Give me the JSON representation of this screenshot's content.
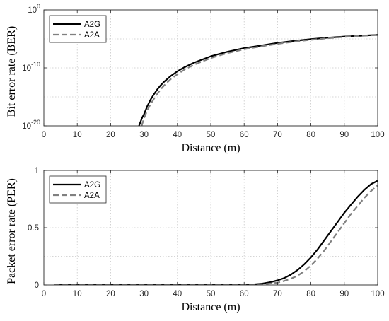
{
  "chart_data": [
    {
      "type": "line",
      "ylabel": "Bit error rate (BER)",
      "xlabel": "Distance (m)",
      "xlim": [
        0,
        100
      ],
      "yscale": "log",
      "ylim": [
        1e-20,
        1
      ],
      "x_ticks": [
        0,
        10,
        20,
        30,
        40,
        50,
        60,
        70,
        80,
        90,
        100
      ],
      "y_ticks": [
        {
          "value": 1,
          "base": "10",
          "exp": "0"
        },
        {
          "value": 1e-10,
          "base": "10",
          "exp": "-10"
        },
        {
          "value": 1e-20,
          "base": "10",
          "exp": "-20"
        }
      ],
      "grid": true,
      "legend": "top-left",
      "series": [
        {
          "name": "A2G",
          "color": "#000000",
          "style": "solid",
          "x": [
            28.5,
            29.5,
            30,
            31,
            32,
            33,
            34,
            35,
            36,
            38,
            40,
            42,
            45,
            50,
            55,
            60,
            65,
            70,
            75,
            80,
            85,
            90,
            95,
            100
          ],
          "y": [
            1e-20,
            3e-19,
            1e-18,
            2.5e-17,
            3.5e-16,
            3e-15,
            2e-14,
            1e-13,
            4e-13,
            4e-12,
            2.5e-11,
            1.2e-10,
            8e-10,
            1e-08,
            6e-08,
            2.5e-07,
            7e-07,
            2e-06,
            4.5e-06,
            9e-06,
            1.6e-05,
            2.5e-05,
            3.5e-05,
            5e-05
          ]
        },
        {
          "name": "A2A",
          "color": "#808080",
          "style": "dashed",
          "x": [
            29.3,
            30,
            31,
            32,
            33,
            34,
            35,
            36,
            38,
            40,
            42,
            45,
            50,
            55,
            60,
            65,
            70,
            75,
            80,
            85,
            90,
            95,
            100
          ],
          "y": [
            1e-20,
            2e-19,
            5e-18,
            6e-17,
            5e-16,
            3.5e-15,
            2e-14,
            9e-14,
            1.2e-12,
            8e-12,
            4.5e-11,
            3.5e-10,
            5e-09,
            3.5e-08,
            1.6e-07,
            5e-07,
            1.4e-06,
            3.3e-06,
            7e-06,
            1.3e-05,
            2.2e-05,
            3.3e-05,
            4.6e-05
          ]
        }
      ]
    },
    {
      "type": "line",
      "ylabel": "Packet error rate (PER)",
      "xlabel": "Distance (m)",
      "xlim": [
        0,
        100
      ],
      "ylim": [
        0,
        1
      ],
      "x_ticks": [
        0,
        10,
        20,
        30,
        40,
        50,
        60,
        70,
        80,
        90,
        100
      ],
      "y_ticks": [
        0,
        0.5,
        1
      ],
      "grid": true,
      "legend": "top-left",
      "series": [
        {
          "name": "A2G",
          "color": "#000000",
          "style": "solid",
          "x": [
            3,
            10,
            20,
            30,
            40,
            50,
            55,
            60,
            62,
            65,
            68,
            70,
            72,
            74,
            76,
            78,
            80,
            82,
            84,
            86,
            88,
            90,
            92,
            94,
            96,
            98,
            100
          ],
          "y": [
            0,
            0,
            0,
            0,
            0,
            0,
            0,
            0.001,
            0.003,
            0.01,
            0.025,
            0.04,
            0.06,
            0.09,
            0.13,
            0.18,
            0.24,
            0.31,
            0.39,
            0.47,
            0.55,
            0.63,
            0.7,
            0.77,
            0.83,
            0.88,
            0.91
          ]
        },
        {
          "name": "A2A",
          "color": "#808080",
          "style": "dashed",
          "x": [
            3,
            10,
            20,
            30,
            40,
            50,
            55,
            60,
            63,
            66,
            70,
            72,
            74,
            76,
            78,
            80,
            82,
            84,
            86,
            88,
            90,
            92,
            94,
            96,
            98,
            100
          ],
          "y": [
            0,
            0,
            0,
            0,
            0,
            0,
            0,
            0,
            0.002,
            0.007,
            0.02,
            0.035,
            0.055,
            0.08,
            0.12,
            0.17,
            0.23,
            0.3,
            0.38,
            0.46,
            0.54,
            0.62,
            0.69,
            0.76,
            0.82,
            0.87
          ]
        }
      ]
    }
  ]
}
